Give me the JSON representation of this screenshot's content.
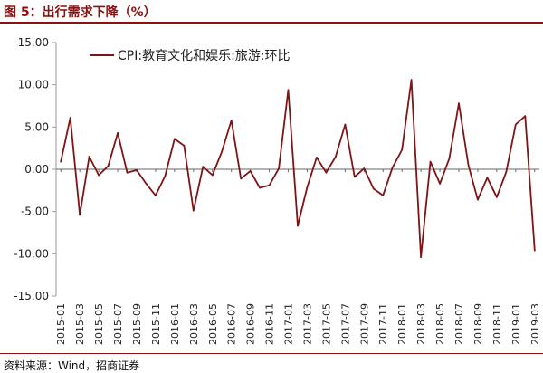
{
  "figure": {
    "title": "图 5：出行需求下降（%）",
    "source": "资料来源：Wind，招商证券"
  },
  "colors": {
    "series": "#7f1416",
    "accent": "#8b1010",
    "axis": "#999999",
    "zero_line": "#666666"
  },
  "chart_data": {
    "type": "line",
    "title": "",
    "xlabel": "",
    "ylabel": "",
    "ylim": [
      -15,
      15
    ],
    "yticks": [
      "15.00",
      "10.00",
      "5.00",
      "0.00",
      "-5.00",
      "-10.00",
      "-15.00"
    ],
    "grid": false,
    "legend": "top-left",
    "x": [
      "2015-01",
      "2015-02",
      "2015-03",
      "2015-04",
      "2015-05",
      "2015-06",
      "2015-07",
      "2015-08",
      "2015-09",
      "2015-10",
      "2015-11",
      "2015-12",
      "2016-01",
      "2016-02",
      "2016-03",
      "2016-04",
      "2016-05",
      "2016-06",
      "2016-07",
      "2016-08",
      "2016-09",
      "2016-10",
      "2016-11",
      "2016-12",
      "2017-01",
      "2017-02",
      "2017-03",
      "2017-04",
      "2017-05",
      "2017-06",
      "2017-07",
      "2017-08",
      "2017-09",
      "2017-10",
      "2017-11",
      "2017-12",
      "2018-01",
      "2018-02",
      "2018-03",
      "2018-04",
      "2018-05",
      "2018-06",
      "2018-07",
      "2018-08",
      "2018-09",
      "2018-10",
      "2018-11",
      "2018-12",
      "2019-01",
      "2019-02",
      "2019-03"
    ],
    "xtick_labels": [
      "2015-01",
      "2015-03",
      "2015-05",
      "2015-07",
      "2015-09",
      "2015-11",
      "2016-01",
      "2016-03",
      "2016-05",
      "2016-07",
      "2016-09",
      "2016-11",
      "2017-01",
      "2017-03",
      "2017-05",
      "2017-07",
      "2017-09",
      "2017-11",
      "2018-01",
      "2018-03",
      "2018-05",
      "2018-07",
      "2018-09",
      "2018-11",
      "2019-01",
      "2019-03"
    ],
    "series": [
      {
        "name": "CPI:教育文化和娱乐:旅游:环比",
        "values": [
          0.9,
          6.1,
          -5.4,
          1.5,
          -0.7,
          0.4,
          4.3,
          -0.4,
          -0.1,
          -1.7,
          -3.1,
          -0.8,
          3.6,
          2.8,
          -4.9,
          0.3,
          -0.7,
          2.1,
          5.8,
          -1.1,
          -0.2,
          -2.2,
          -1.9,
          0.1,
          9.4,
          -6.7,
          -2.1,
          1.4,
          -0.4,
          1.5,
          5.3,
          -0.9,
          0.1,
          -2.3,
          -3.1,
          0.2,
          2.3,
          10.6,
          -10.4,
          0.9,
          -1.7,
          1.3,
          7.8,
          0.5,
          -3.6,
          -1.0,
          -3.3,
          -0.3,
          5.3,
          6.3,
          -9.6
        ]
      }
    ]
  }
}
